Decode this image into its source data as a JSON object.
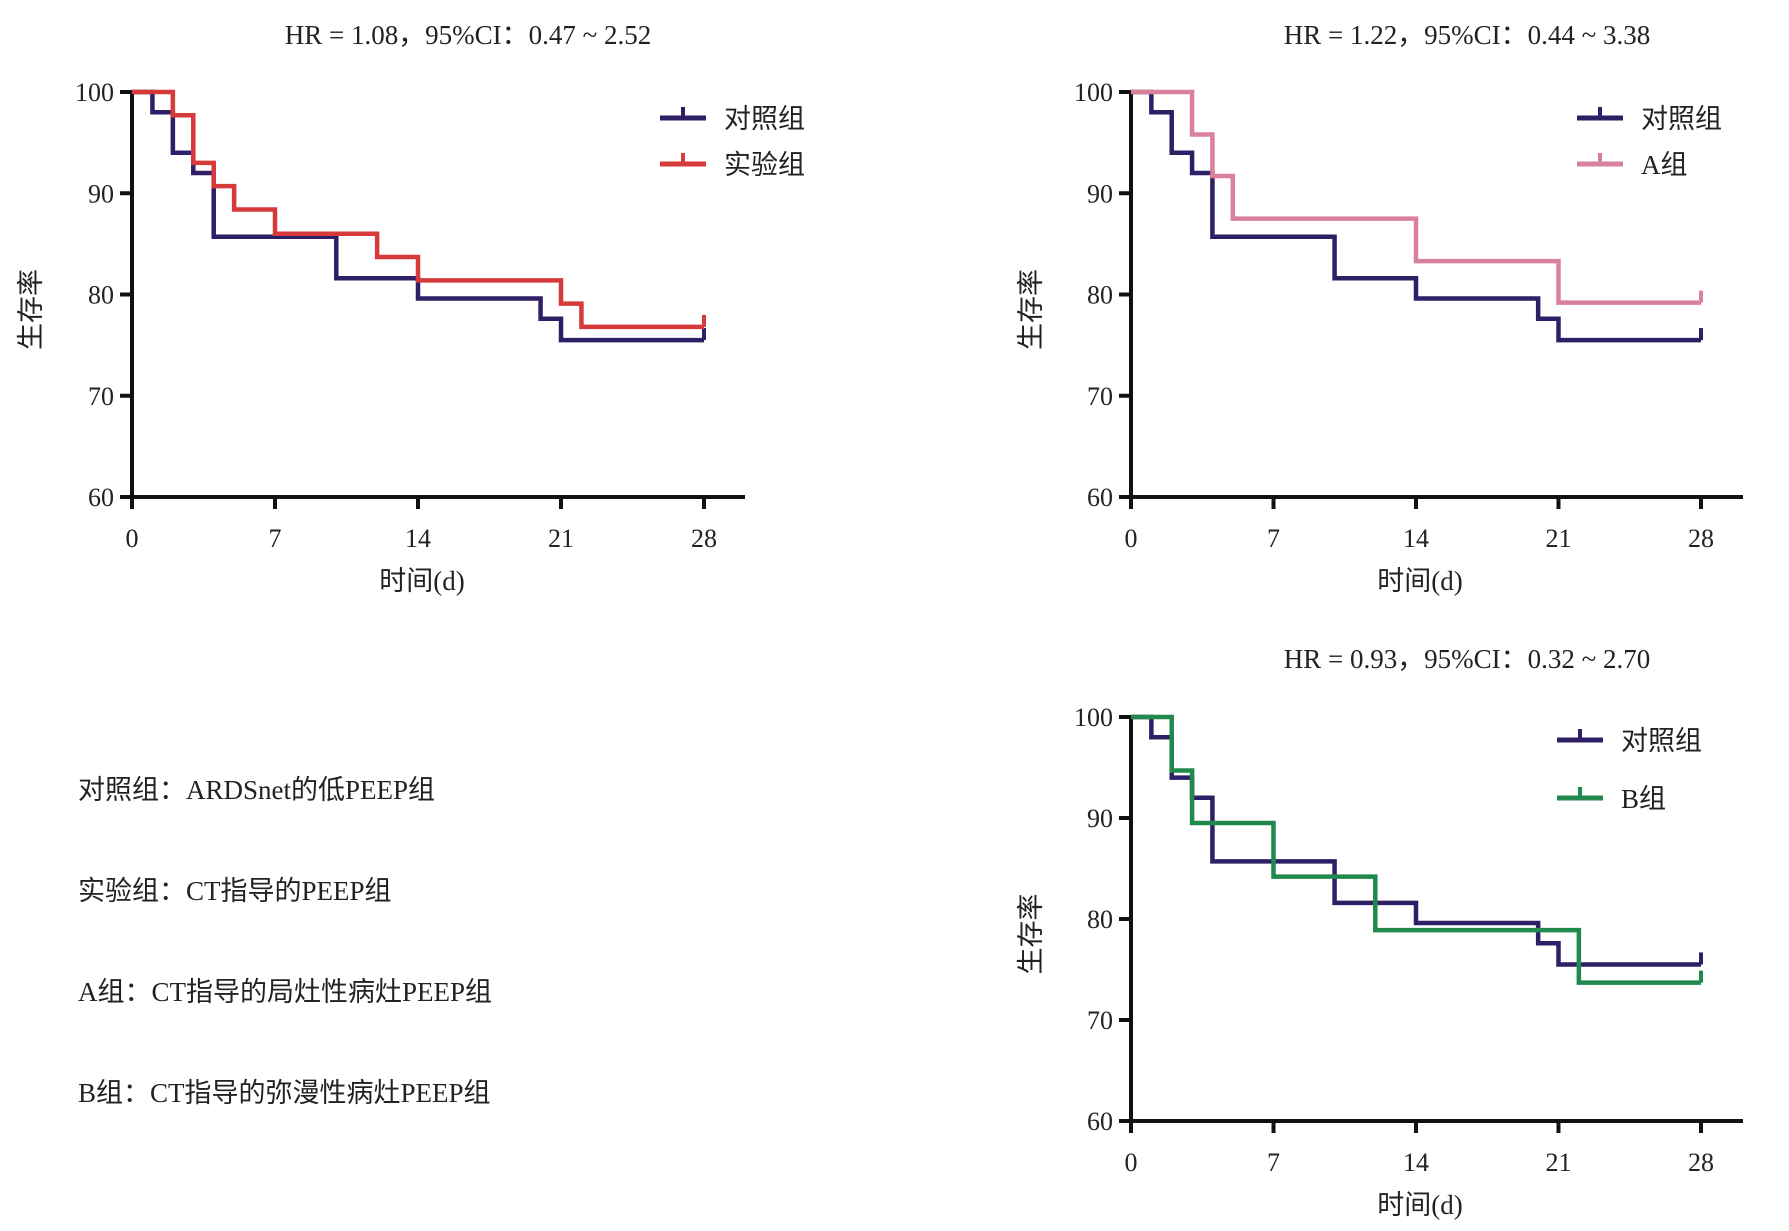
{
  "chart_data": [
    {
      "type": "line",
      "subtype": "kaplan-meier-step",
      "title": "HR = 1.08，95%CI：0.47 ~ 2.52",
      "xlabel": "时间(d)",
      "ylabel": "生存率",
      "xlim": [
        0,
        28
      ],
      "ylim": [
        60,
        100
      ],
      "xticks": [
        0,
        7,
        14,
        21,
        28
      ],
      "yticks": [
        60,
        70,
        80,
        90,
        100
      ],
      "grid": false,
      "legend_position": "top-right",
      "series": [
        {
          "name": "对照组",
          "color": "#2e1f66",
          "times": [
            0,
            1,
            2,
            3,
            4,
            10,
            14,
            20,
            21,
            28
          ],
          "values": [
            100,
            98,
            94,
            92,
            85.7,
            81.6,
            79.6,
            77.6,
            75.5,
            75.5
          ]
        },
        {
          "name": "实验组",
          "color": "#d63a3a",
          "times": [
            0,
            2,
            3,
            4,
            5,
            7,
            12,
            14,
            21,
            22,
            28
          ],
          "values": [
            100,
            97.7,
            93,
            90.7,
            88.4,
            86,
            83.7,
            81.4,
            79.1,
            76.8,
            76.8
          ]
        }
      ]
    },
    {
      "type": "line",
      "subtype": "kaplan-meier-step",
      "title": "HR = 1.22，95%CI：0.44 ~ 3.38",
      "xlabel": "时间(d)",
      "ylabel": "生存率",
      "xlim": [
        0,
        28
      ],
      "ylim": [
        60,
        100
      ],
      "xticks": [
        0,
        7,
        14,
        21,
        28
      ],
      "yticks": [
        60,
        70,
        80,
        90,
        100
      ],
      "grid": false,
      "legend_position": "top-right",
      "series": [
        {
          "name": "对照组",
          "color": "#2e1f66",
          "times": [
            0,
            1,
            2,
            3,
            4,
            10,
            14,
            20,
            21,
            28
          ],
          "values": [
            100,
            98,
            94,
            92,
            85.7,
            81.6,
            79.6,
            77.6,
            75.5,
            75.5
          ]
        },
        {
          "name": "A组",
          "color": "#d9809a",
          "times": [
            0,
            3,
            4,
            5,
            14,
            21,
            28
          ],
          "values": [
            100,
            95.8,
            91.7,
            87.5,
            83.3,
            79.2,
            79.2
          ]
        }
      ]
    },
    {
      "type": "line",
      "subtype": "kaplan-meier-step",
      "title": "HR = 0.93，95%CI：0.32 ~ 2.70",
      "xlabel": "时间(d)",
      "ylabel": "生存率",
      "xlim": [
        0,
        28
      ],
      "ylim": [
        60,
        100
      ],
      "xticks": [
        0,
        7,
        14,
        21,
        28
      ],
      "yticks": [
        60,
        70,
        80,
        90,
        100
      ],
      "grid": false,
      "legend_position": "top-right",
      "series": [
        {
          "name": "对照组",
          "color": "#2e1f66",
          "times": [
            0,
            1,
            2,
            3,
            4,
            10,
            14,
            20,
            21,
            28
          ],
          "values": [
            100,
            98,
            94,
            92,
            85.7,
            81.6,
            79.6,
            77.6,
            75.5,
            75.5
          ]
        },
        {
          "name": "B组",
          "color": "#1f8a4c",
          "times": [
            0,
            2,
            3,
            7,
            12,
            22,
            28
          ],
          "values": [
            100,
            94.7,
            89.5,
            84.2,
            78.9,
            73.7,
            73.7
          ]
        }
      ]
    }
  ],
  "footnotes": [
    "对照组：ARDSnet的低PEEP组",
    "实验组：CT指导的PEEP组",
    "A组：CT指导的局灶性病灶PEEP组",
    "B组：CT指导的弥漫性病灶PEEP组"
  ]
}
